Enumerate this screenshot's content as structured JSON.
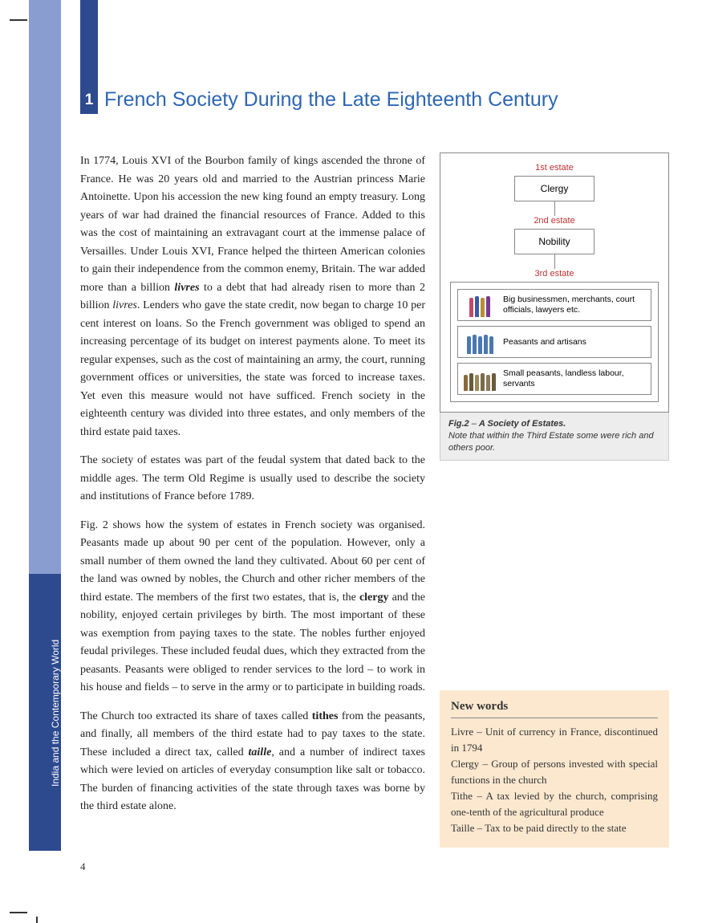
{
  "page_number": "4",
  "vertical_label": "India and the Contemporary World",
  "section": {
    "number": "1",
    "title": "French Society During the Late Eighteenth Century"
  },
  "paragraphs": {
    "p1a": "In 1774, Louis XVI of the Bourbon family of kings ascended the throne of France. He was 20 years old and married to the Austrian princess Marie Antoinette. Upon his accession the new king found an empty treasury. Long years of war had drained the financial resources of France. Added to this was the cost of maintaining an extravagant court at the immense palace of Versailles. Under Louis XVI, France helped the thirteen American colonies to gain their independence from the common enemy, Britain. The war added more than a billion ",
    "p1_term1": "livres",
    "p1b": " to a debt that had already risen to more than 2 billion ",
    "p1_term2": "livres",
    "p1c": ". Lenders who gave the state credit, now began to charge 10 per cent interest on loans. So the French government was obliged to spend an increasing percentage of its budget on interest payments alone. To meet its regular expenses, such as the cost of maintaining an army, the court, running government offices or universities, the state was forced to increase taxes. Yet even this measure would not have sufficed. French society in the eighteenth century was divided into three estates, and only members of the third estate paid taxes.",
    "p2": "The society of estates was part of the feudal system that dated back to the middle ages. The term Old Regime is usually used to describe the society and institutions of France before 1789.",
    "p3a": "Fig. 2 shows how the system of estates in French society was organised. Peasants made up about 90 per cent of the population. However, only a small number of them owned the land they cultivated. About 60 per cent of the land was owned by nobles, the Church and other richer members of the third estate. The members of the first two estates, that is, the ",
    "p3_term1": "clergy",
    "p3b": " and the nobility, enjoyed certain privileges by birth. The most important of these was exemption from paying taxes to the state. The nobles further enjoyed feudal privileges. These included feudal dues, which they extracted from the peasants. Peasants were obliged to render services to the lord – to work in his house and fields – to serve in the army or to participate in building roads.",
    "p4a": "The Church too extracted its share of taxes called ",
    "p4_term1": "tithes",
    "p4b": " from the peasants, and finally, all members of the third estate had to pay taxes to the state. These included a direct tax, called ",
    "p4_term2": "taille",
    "p4c": ", and a number of indirect taxes which were levied on articles of everyday consumption like salt or tobacco. The burden of financing activities of the state through taxes was borne by the third estate alone."
  },
  "figure": {
    "est1_label": "1st estate",
    "est1_box": "Clergy",
    "est2_label": "2nd estate",
    "est2_box": "Nobility",
    "est3_label": "3rd estate",
    "sub1": "Big businessmen, merchants, court officials, lawyers etc.",
    "sub2": "Peasants and artisans",
    "sub3": "Small peasants, landless labour, servants",
    "cap_lead": "Fig.2",
    "cap_dash": " – ",
    "cap_title": "A Society of Estates.",
    "cap_note": "Note that within the Third Estate some were rich and others poor.",
    "icon_colors": {
      "row1": [
        "#c24a6a",
        "#3a5aa8",
        "#b89030",
        "#7a3a8f"
      ],
      "row2": [
        "#4a78b0",
        "#4a78b0",
        "#4a78b0",
        "#4a78b0",
        "#4a78b0"
      ],
      "row3": [
        "#8a6a3a",
        "#6a5a3a",
        "#9a8a5a",
        "#7a6a4a",
        "#8a7a5a",
        "#6a5a3a"
      ]
    }
  },
  "newwords": {
    "title": "New words",
    "body": "Livre – Unit of currency in France, discontinued in 1794\nClergy – Group of persons invested with special functions in the church\nTithe – A tax levied by the church, comprising one-tenth of the agricultural produce\nTaille – Tax to be paid directly to the state"
  },
  "colors": {
    "light_strip": "#8a9dd0",
    "dark_strip": "#2d4a8f",
    "title": "#2d66b2",
    "newwords_bg": "#fbe8cf"
  }
}
